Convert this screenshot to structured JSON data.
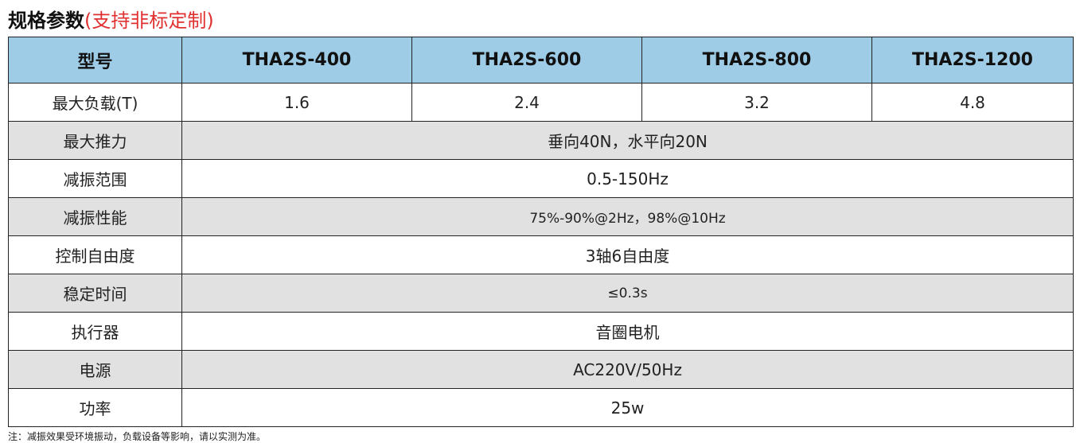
{
  "title": {
    "main": "规格参数",
    "sub": "(支持非标定制)"
  },
  "table": {
    "headers": [
      "型号",
      "THA2S-400",
      "THA2S-600",
      "THA2S-800",
      "THA2S-1200"
    ],
    "load_row": {
      "label": "最大负载(T)",
      "values": [
        "1.6",
        "2.4",
        "3.2",
        "4.8"
      ]
    },
    "rows": [
      {
        "label": "最大推力",
        "value": "垂向40N，水平向20N"
      },
      {
        "label": "减振范围",
        "value": "0.5-150Hz"
      },
      {
        "label": "减振性能",
        "value": "75%-90%@2Hz，98%@10Hz"
      },
      {
        "label": "控制自由度",
        "value": "3轴6自由度"
      },
      {
        "label": "稳定时间",
        "value": "≤0.3s"
      },
      {
        "label": "执行器",
        "value": "音圈电机"
      },
      {
        "label": "电源",
        "value": "AC220V/50Hz"
      },
      {
        "label": "功率",
        "value": "25w"
      }
    ]
  },
  "note": "注：减振效果受环境振动，负载设备等影响，请以实测为准。",
  "colors": {
    "header_bg": "#9ecbe6",
    "stripe_bg": "#e1e1e1",
    "subtitle": "#e03030"
  }
}
